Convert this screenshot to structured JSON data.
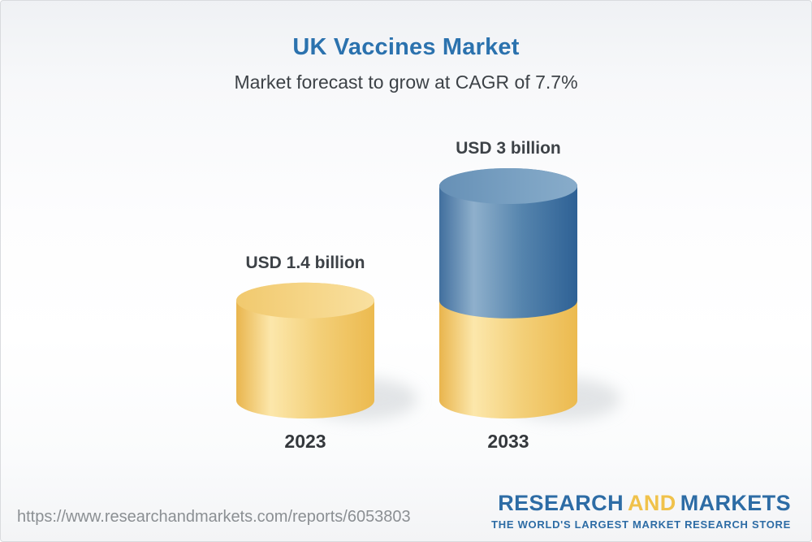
{
  "header": {
    "title": "UK Vaccines Market",
    "subtitle": "Market forecast to grow at CAGR of 7.7%"
  },
  "chart_data": {
    "type": "bar",
    "variant": "3d-cylinder-infographic",
    "title": "UK Vaccines Market",
    "subtitle": "Market forecast to grow at CAGR of 7.7%",
    "unit": "USD billion",
    "cagr_pct": 7.7,
    "categories": [
      "2023",
      "2033"
    ],
    "values": [
      1.4,
      3
    ],
    "value_labels": [
      "USD 1.4 billion",
      "USD 3 billion"
    ],
    "ylim": [
      0,
      3
    ],
    "grid": false,
    "legend": false,
    "bars": [
      {
        "category": "2023",
        "label": "USD 1.4 billion",
        "total": 1.4,
        "segments": [
          {
            "name": "market-size-2023",
            "value": 1.4,
            "color": "yellow"
          }
        ]
      },
      {
        "category": "2033",
        "label": "USD 3 billion",
        "total": 3,
        "segments": [
          {
            "name": "base-2023-level",
            "value": 1.4,
            "color": "yellow"
          },
          {
            "name": "forecast-growth",
            "value": 1.6,
            "color": "blue"
          }
        ]
      }
    ]
  },
  "footer": {
    "url": "https://www.researchandmarkets.com/reports/6053803",
    "logo": {
      "research": "RESEARCH",
      "and": "AND",
      "markets": "MARKETS",
      "tagline": "THE WORLD'S LARGEST MARKET RESEARCH STORE"
    }
  },
  "colors": {
    "title_blue": "#2b72ae",
    "text_dark": "#3d4247",
    "bar_yellow": "#f2c765",
    "bar_blue": "#41719f",
    "logo_blue": "#2d6ca5",
    "logo_yellow": "#f0c24b",
    "url_gray": "#8b8f93"
  }
}
